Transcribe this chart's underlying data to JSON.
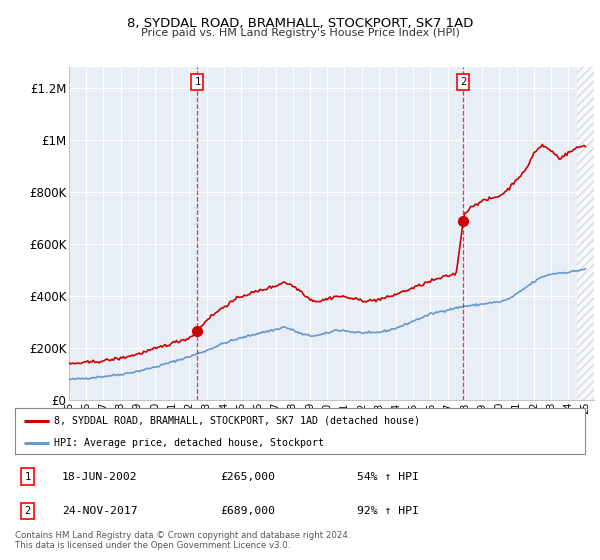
{
  "title": "8, SYDDAL ROAD, BRAMHALL, STOCKPORT, SK7 1AD",
  "subtitle": "Price paid vs. HM Land Registry's House Price Index (HPI)",
  "ylabel_ticks": [
    "£0",
    "£200K",
    "£400K",
    "£600K",
    "£800K",
    "£1M",
    "£1.2M"
  ],
  "ytick_values": [
    0,
    200000,
    400000,
    600000,
    800000,
    1000000,
    1200000
  ],
  "ylim": [
    0,
    1280000
  ],
  "xlim_start": 1995.0,
  "xlim_end": 2025.5,
  "bg_color": "#e8eef5",
  "red_line_color": "#cc0000",
  "blue_line_color": "#6699cc",
  "marker1_x": 2002.46,
  "marker1_y": 265000,
  "marker2_x": 2017.9,
  "marker2_y": 689000,
  "legend_label_red": "8, SYDDAL ROAD, BRAMHALL, STOCKPORT, SK7 1AD (detached house)",
  "legend_label_blue": "HPI: Average price, detached house, Stockport",
  "table_row1": [
    "1",
    "18-JUN-2002",
    "£265,000",
    "54% ↑ HPI"
  ],
  "table_row2": [
    "2",
    "24-NOV-2017",
    "£689,000",
    "92% ↑ HPI"
  ],
  "footer": "Contains HM Land Registry data © Crown copyright and database right 2024.\nThis data is licensed under the Open Government Licence v3.0."
}
